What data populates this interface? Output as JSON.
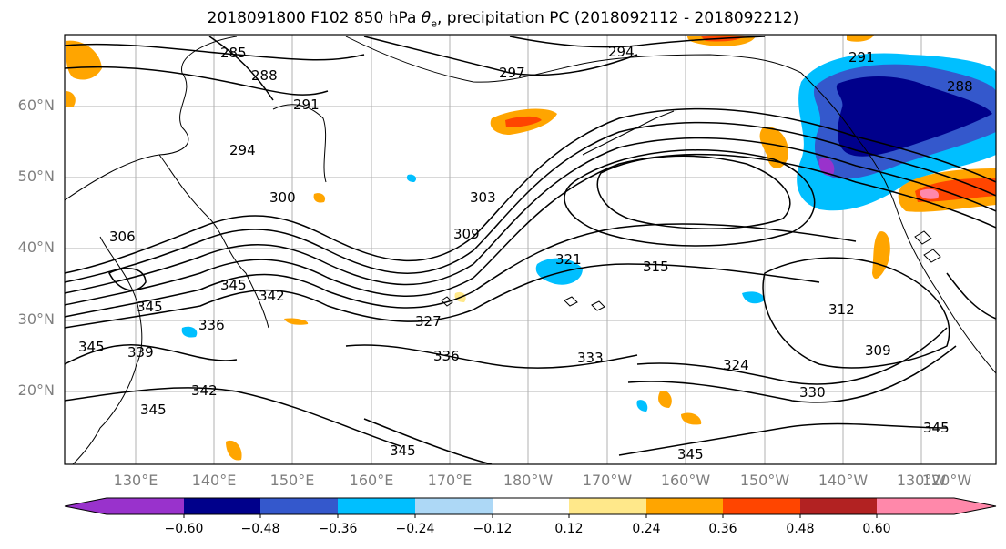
{
  "title": {
    "prefix": "2018091800 F102 850 hPa ",
    "symbol": "θ",
    "subscript": "e",
    "suffix": ", precipitation PC (2018092112 - 2018092212)"
  },
  "lat_labels": [
    "60°N",
    "50°N",
    "40°N",
    "30°N",
    "20°N"
  ],
  "lon_labels": [
    "130°E",
    "140°E",
    "150°E",
    "160°E",
    "170°E",
    "180°W",
    "170°W",
    "160°W",
    "150°W",
    "140°W",
    "130°W",
    "120°W"
  ],
  "contour_labels": [
    "285",
    "288",
    "291",
    "294",
    "297",
    "294",
    "291",
    "288",
    "300",
    "303",
    "309",
    "306",
    "315",
    "312",
    "321",
    "327",
    "336",
    "333",
    "324",
    "330",
    "309",
    "345",
    "342",
    "345",
    "336",
    "339",
    "345",
    "342",
    "345",
    "345",
    "345",
    "345"
  ],
  "colorbar": {
    "ticks": [
      "−0.60",
      "−0.48",
      "−0.36",
      "−0.24",
      "−0.12",
      "0.12",
      "0.24",
      "0.36",
      "0.48",
      "0.60"
    ],
    "colors": [
      "#9932cc",
      "#00008b",
      "#3458cc",
      "#00bfff",
      "#add8f6",
      "#ffffff",
      "#ffe88a",
      "#ffa500",
      "#ff4500",
      "#b22222",
      "#ff88aa"
    ]
  },
  "colors": {
    "contour": "#000000",
    "grid": "#b0b0b0",
    "tick_label": "#7f7f7f"
  }
}
